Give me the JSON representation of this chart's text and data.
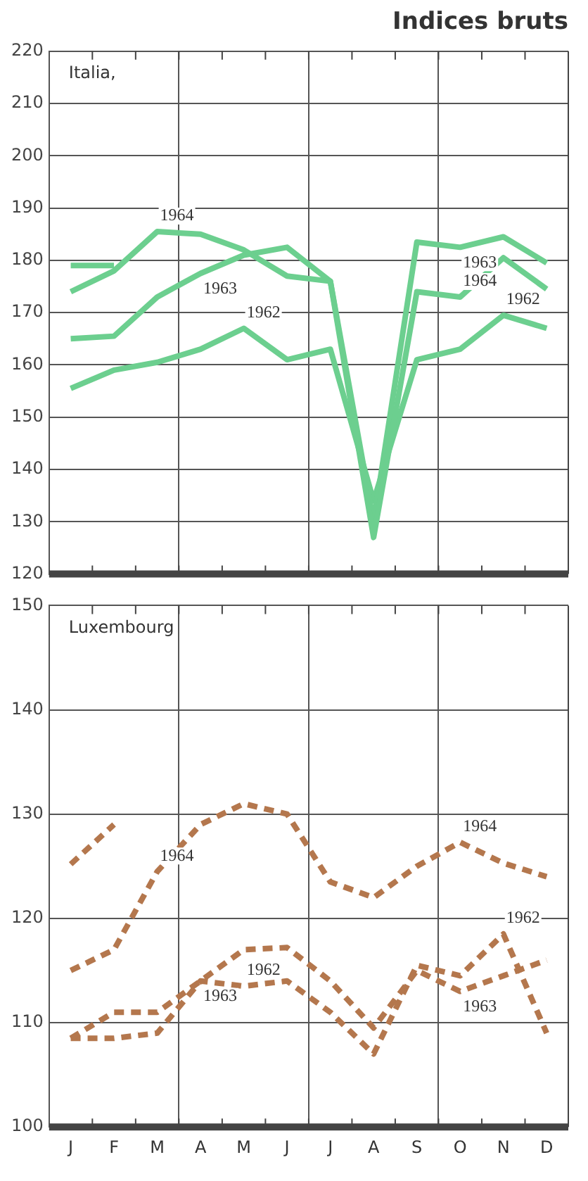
{
  "chart_data": [
    {
      "type": "line",
      "title": "Indices bruts",
      "annotations": [
        "Italia,"
      ],
      "categories": [
        null,
        null,
        null,
        null,
        null,
        null,
        null,
        null,
        null,
        null,
        null,
        null
      ],
      "series": [
        {
          "name": "1964",
          "color": "#6ccf8f",
          "values": [
            174,
            178,
            185.5,
            185,
            182,
            177,
            176,
            127,
            174,
            173,
            180.5,
            174.5
          ]
        },
        {
          "name": "1963",
          "color": "#6ccf8f",
          "values": [
            165,
            165.5,
            173,
            177.5,
            181,
            182.5,
            176,
            130,
            183.5,
            182.5,
            184.5,
            179.5
          ]
        },
        {
          "name": "1962",
          "color": "#6ccf8f",
          "values": [
            155.5,
            159,
            160.5,
            163,
            167,
            161,
            163,
            134,
            161,
            163,
            169.5,
            167
          ]
        },
        {
          "color": "#6ccf8f",
          "values": [
            179,
            179,
            null,
            null,
            null,
            null,
            null,
            null,
            null,
            null,
            null,
            null
          ]
        }
      ],
      "ylim": [
        120,
        220
      ],
      "yticks": [
        120,
        130,
        140,
        150,
        160,
        170,
        180,
        190,
        200,
        210,
        220
      ],
      "grid": true,
      "legend": false,
      "tick_labels": "y",
      "line_style": "solid",
      "marker": "none"
    },
    {
      "type": "line",
      "annotations": [
        "Luxembourg"
      ],
      "categories": [
        "J",
        "F",
        "M",
        "A",
        "M",
        "J",
        "J",
        "A",
        "S",
        "O",
        "N",
        "D"
      ],
      "series": [
        {
          "name": "1964",
          "color": "#b4774d",
          "values": [
            115,
            117,
            124.5,
            129,
            131,
            130,
            123.5,
            122,
            125,
            127.3,
            125.3,
            124
          ]
        },
        {
          "name": "1963",
          "color": "#b4774d",
          "values": [
            108.5,
            111,
            111,
            114,
            117,
            117.2,
            114,
            109.5,
            115,
            113,
            114.5,
            116
          ]
        },
        {
          "name": "1962",
          "color": "#b4774d",
          "values": [
            108.5,
            108.5,
            109,
            114,
            113.5,
            114,
            111,
            107,
            115.5,
            114.5,
            118.5,
            109
          ]
        },
        {
          "color": "#b4774d",
          "values": [
            125.2,
            129,
            null,
            null,
            null,
            null,
            null,
            null,
            null,
            null,
            null,
            null
          ]
        }
      ],
      "ylim": [
        100,
        150
      ],
      "yticks": [
        100,
        110,
        120,
        130,
        140,
        150
      ],
      "grid": true,
      "legend": false,
      "line_style": "dashed",
      "marker": "none"
    }
  ]
}
